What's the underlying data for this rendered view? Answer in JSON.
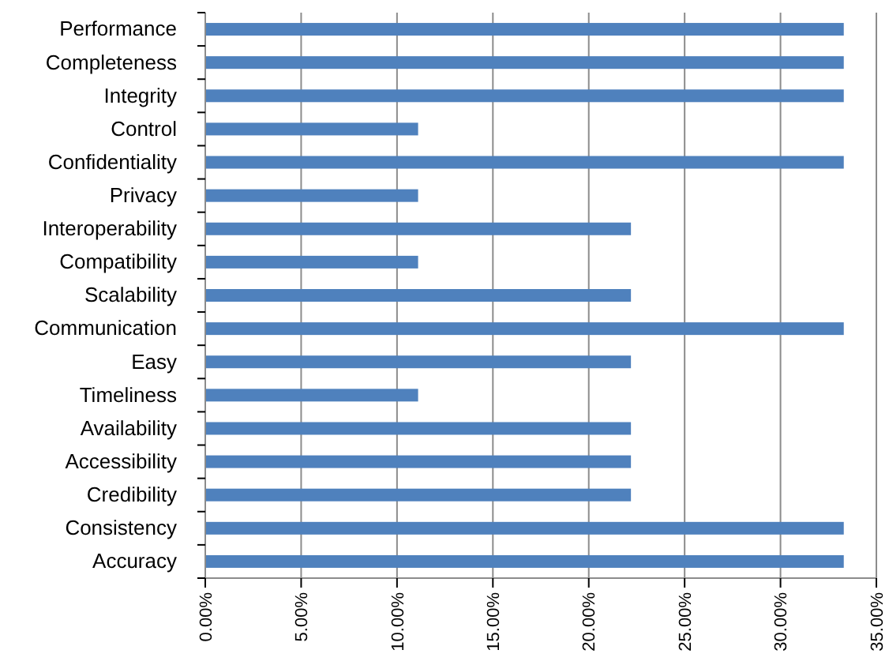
{
  "chart_data": {
    "type": "bar",
    "orientation": "horizontal",
    "categories": [
      "Performance",
      "Completeness",
      "Integrity",
      "Control",
      "Confidentiality",
      "Privacy",
      "Interoperability",
      "Compatibility",
      "Scalability",
      "Communication",
      "Easy",
      "Timeliness",
      "Availability",
      "Accessibility",
      "Credibility",
      "Consistency",
      "Accuracy"
    ],
    "values": [
      33.3,
      33.3,
      33.3,
      11.1,
      33.3,
      11.1,
      22.2,
      11.1,
      22.2,
      33.3,
      22.2,
      11.1,
      22.2,
      22.2,
      22.2,
      33.3,
      33.3
    ],
    "color": "#4f81bd",
    "xlim": [
      0,
      35
    ],
    "xticks": [
      {
        "value": 0,
        "label": "0.00%"
      },
      {
        "value": 5,
        "label": "5.00%"
      },
      {
        "value": 10,
        "label": "10.00%"
      },
      {
        "value": 15,
        "label": "15.00%"
      },
      {
        "value": 20,
        "label": "20.00%"
      },
      {
        "value": 25,
        "label": "25.00%"
      },
      {
        "value": 30,
        "label": "30.00%"
      },
      {
        "value": 35,
        "label": "35.00%"
      }
    ],
    "grid": "x"
  }
}
